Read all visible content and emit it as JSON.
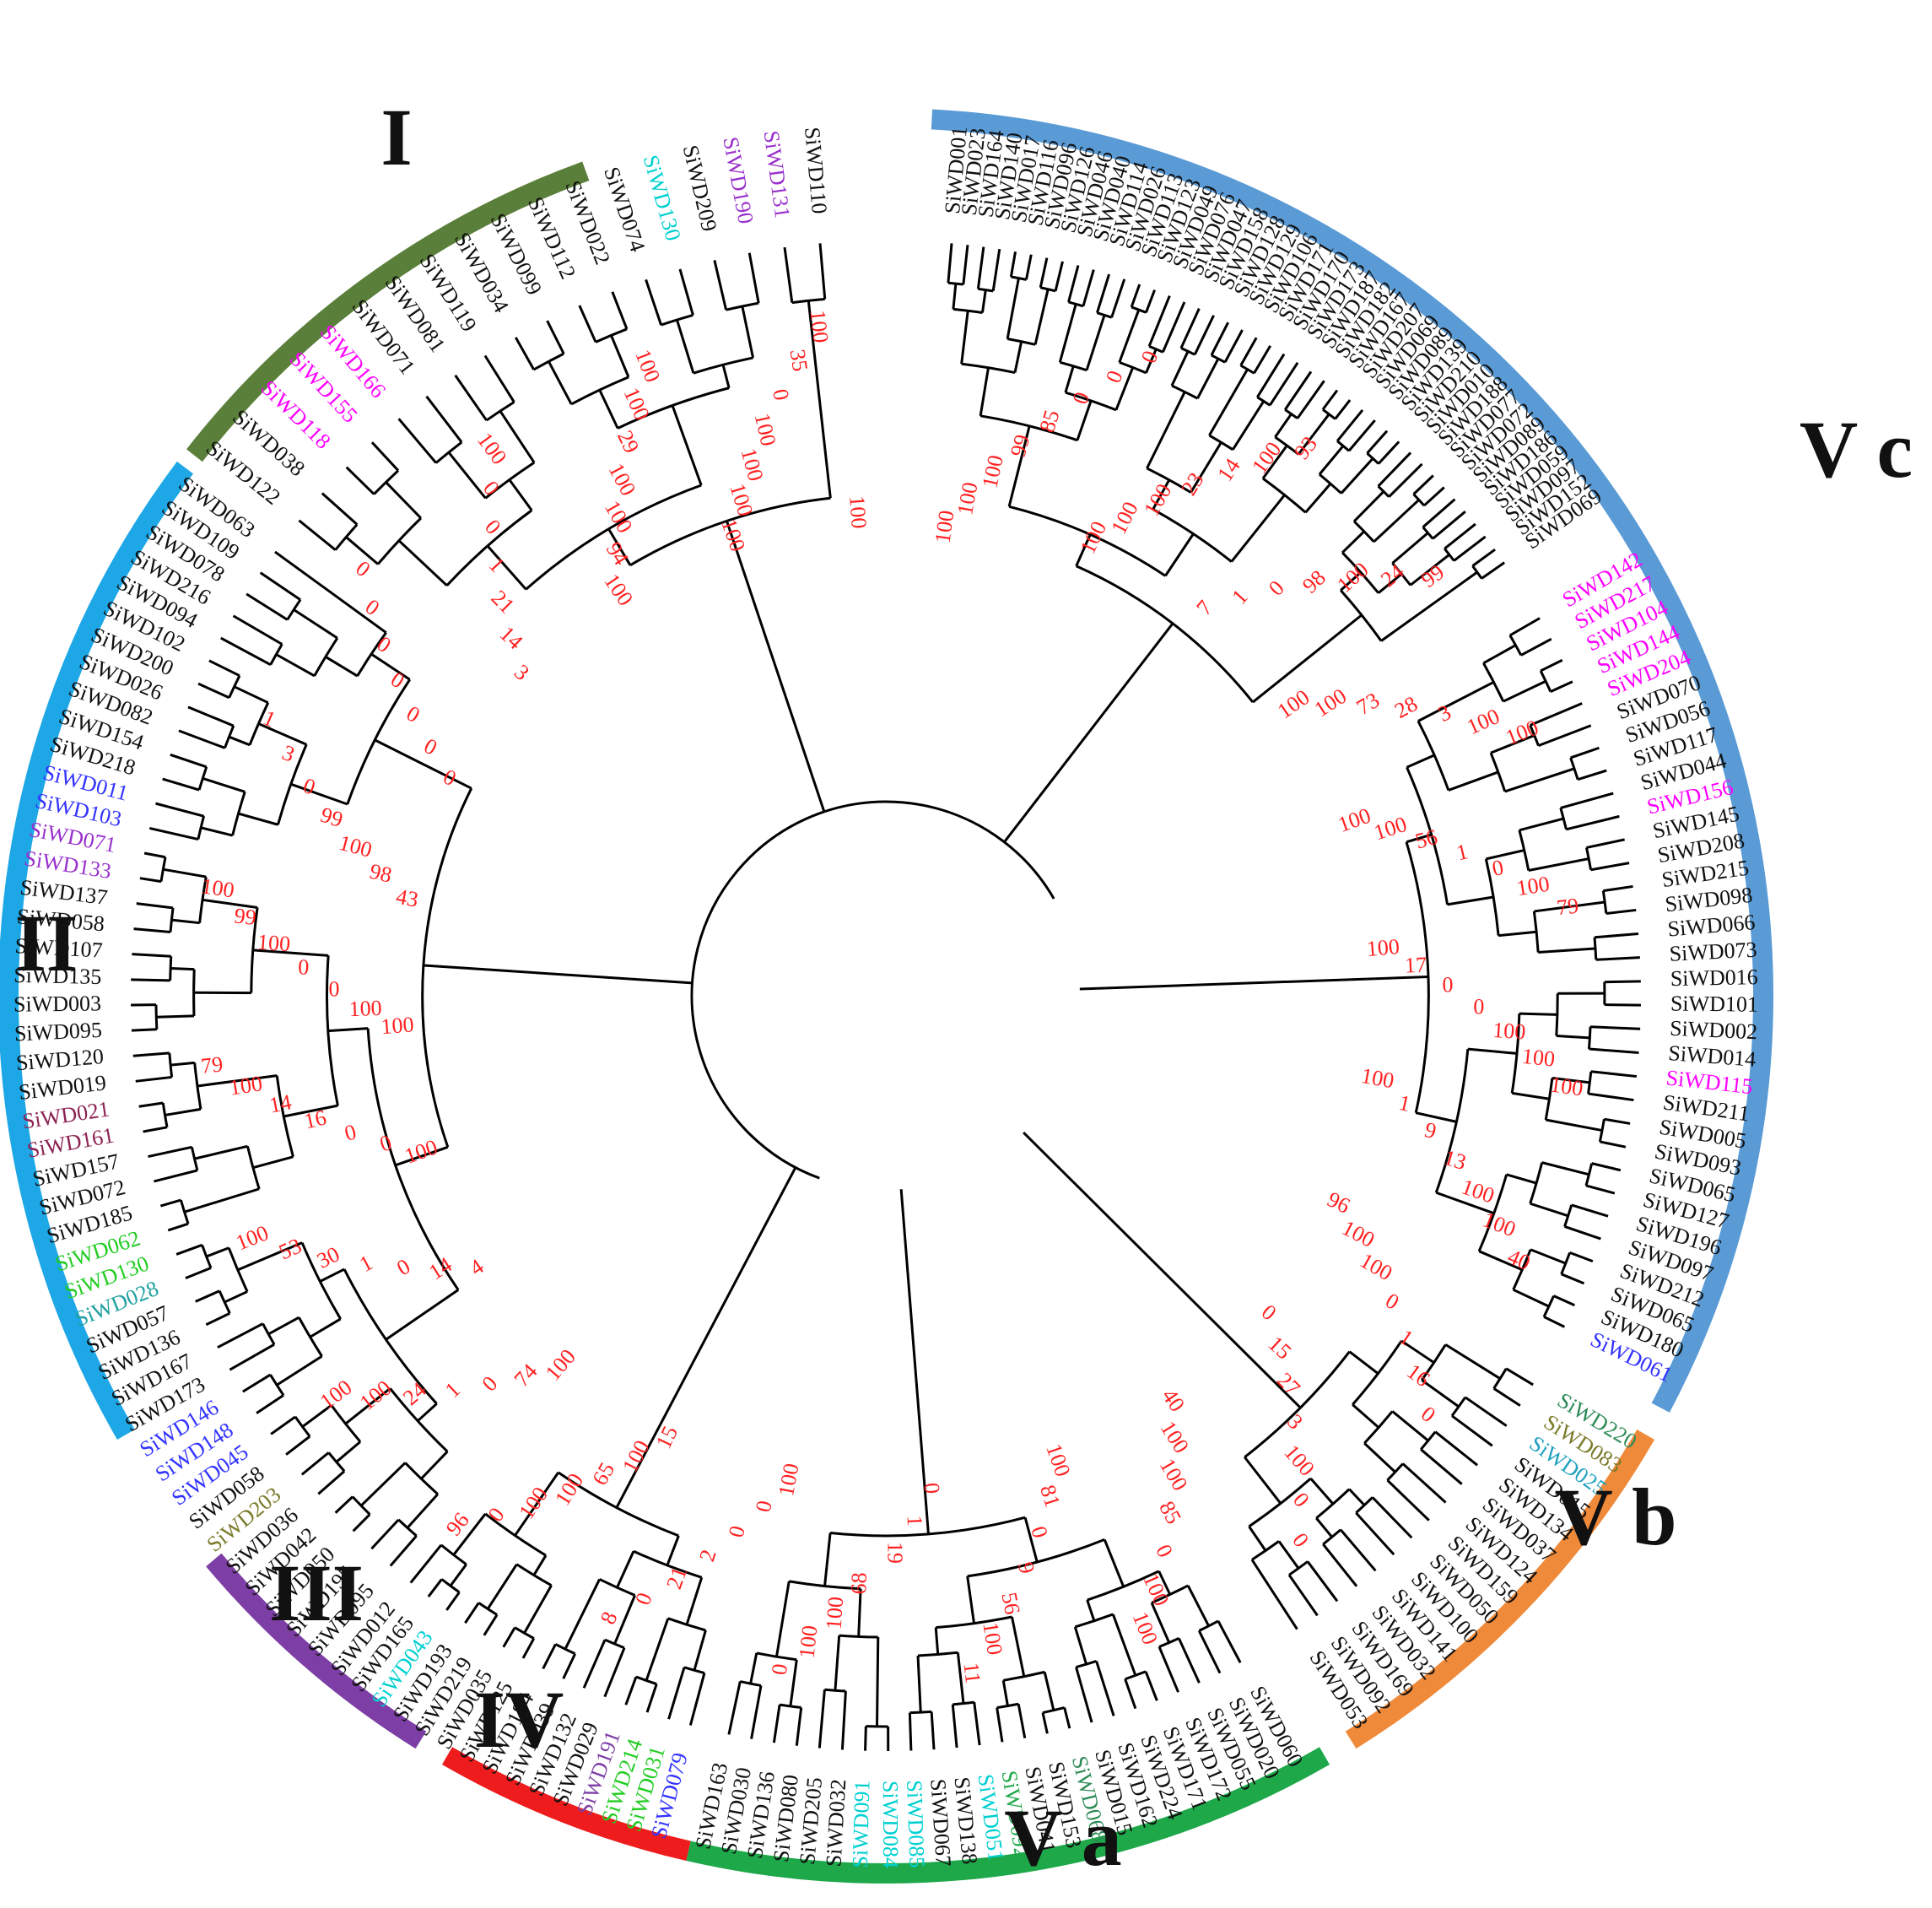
{
  "figure": {
    "clades": [
      {
        "label": "I",
        "color": "#5a7f3a"
      },
      {
        "label": "II",
        "color": "#1ea7e6"
      },
      {
        "label": "III",
        "color": "#7d3fa6"
      },
      {
        "label": "IV",
        "color": "#ee1c1c"
      },
      {
        "label": "V a",
        "color": "#1ea84a"
      },
      {
        "label": "V b",
        "color": "#ef8a3a"
      },
      {
        "label": "V c",
        "color": "#5a9bd6"
      }
    ],
    "leaf_labels_va": [
      "SiWD060",
      "SiWD020",
      "SiWD055",
      "SiWD172",
      "SiWD171",
      "SiWD224",
      "SiWD162",
      "SiWD015",
      "SiWD068",
      "SiWD153",
      "SiWD041",
      "SiWD092",
      "SiWD051",
      "SiWD138",
      "SiWD067",
      "SiWD085",
      "SiWD084",
      "SiWD091",
      "SiWD032",
      "SiWD205",
      "SiWD080",
      "SiWD136",
      "SiWD030",
      "SiWD163"
    ],
    "leaf_labels_vc_right": [
      "SiWD142",
      "SiWD217",
      "SiWD104",
      "SiWD144",
      "SiWD204",
      "SiWD070",
      "SiWD056",
      "SiWD117",
      "SiWD044",
      "SiWD156",
      "SiWD145",
      "SiWD208",
      "SiWD215",
      "SiWD098",
      "SiWD066",
      "SiWD073",
      "SiWD016",
      "SiWD101",
      "SiWD002",
      "SiWD014",
      "SiWD115",
      "SiWD211",
      "SiWD005",
      "SiWD093",
      "SiWD065",
      "SiWD127",
      "SiWD196",
      "SiWD097",
      "SiWD212",
      "SiWD065",
      "SiWD180",
      "SiWD061"
    ],
    "leaf_labels_vc_top": [
      "SiWD001",
      "SiWD023",
      "SiWD164",
      "SiWD140",
      "SiWD017",
      "SiWD116",
      "SiWD096",
      "SiWD126",
      "SiWD046",
      "SiWD040",
      "SiWD114",
      "SiWD026",
      "SiWD113",
      "SiWD123",
      "SiWD049",
      "SiWD076",
      "SiWD047",
      "SiWD158",
      "SiWD128",
      "SiWD129",
      "SiWD106",
      "SiWD171",
      "SiWD170",
      "SiWD173",
      "SiWD187",
      "SiWD182",
      "SiWD167",
      "SiWD207",
      "SiWD069",
      "SiWD089",
      "SiWD139",
      "SiWD210",
      "SiWD010",
      "SiWD188",
      "SiWD077",
      "SiWD072",
      "SiWD089",
      "SiWD186",
      "SiWD059",
      "SiWD097",
      "SiWD152",
      "SiWD069"
    ],
    "leaf_labels_i": [
      "SiWD122",
      "SiWD038",
      "SiWD118",
      "SiWD155",
      "SiWD166",
      "SiWD071",
      "SiWD081",
      "SiWD119",
      "SiWD034",
      "SiWD099",
      "SiWD112",
      "SiWD022",
      "SiWD074",
      "SiWD130",
      "SiWD209",
      "SiWD190",
      "SiWD131",
      "SiWD110"
    ],
    "leaf_labels_ii": [
      "SiWD095",
      "SiWD195",
      "SiWD050",
      "SiWD042",
      "SiWD036",
      "SiWD203",
      "SiWD058",
      "SiWD045",
      "SiWD148",
      "SiWD146",
      "SiWD173",
      "SiWD167",
      "SiWD136",
      "SiWD057",
      "SiWD028",
      "SiWD130",
      "SiWD062",
      "SiWD185",
      "SiWD072",
      "SiWD157",
      "SiWD161",
      "SiWD021",
      "SiWD019",
      "SiWD120",
      "SiWD095",
      "SiWD003",
      "SiWD135",
      "SiWD107",
      "SiWD058",
      "SiWD137",
      "SiWD133",
      "SiWD071",
      "SiWD103",
      "SiWD011",
      "SiWD218",
      "SiWD154",
      "SiWD082",
      "SiWD026",
      "SiWD200",
      "SiWD102",
      "SiWD094",
      "SiWD216",
      "SiWD078",
      "SiWD109",
      "SiWD063"
    ],
    "leaf_labels_iii_iv": [
      "SiWD079",
      "SiWD031",
      "SiWD214",
      "SiWD191",
      "SiWD029",
      "SiWD132",
      "SiWD039",
      "SiWD184",
      "SiWD125",
      "SiWD035",
      "SiWD219",
      "SiWD193",
      "SiWD043",
      "SiWD165",
      "SiWD012"
    ],
    "leaf_labels_vb": [
      "SiWD220",
      "SiWD083",
      "SiWD025",
      "SiWD015",
      "SiWD134",
      "SiWD037",
      "SiWD124",
      "SiWD159",
      "SiWD050",
      "SiWD100",
      "SiWD141",
      "SiWD032",
      "SiWD169",
      "SiWD092",
      "SiWD053"
    ],
    "bootstrap_values": [
      "100",
      "100",
      "100",
      "99",
      "85",
      "0",
      "0",
      "0",
      "100",
      "100",
      "100",
      "23",
      "14",
      "100",
      "93",
      "7",
      "1",
      "0",
      "98",
      "100",
      "24",
      "99",
      "100",
      "100",
      "73",
      "28",
      "3",
      "100",
      "100",
      "100",
      "100",
      "56",
      "1",
      "0",
      "100",
      "79",
      "100",
      "17",
      "0",
      "0",
      "100",
      "100",
      "100",
      "100",
      "1",
      "9",
      "13",
      "100",
      "100",
      "40",
      "96",
      "100",
      "100",
      "0",
      "1",
      "16",
      "0",
      "0",
      "15",
      "27",
      "3",
      "100",
      "0",
      "0",
      "40",
      "100",
      "100",
      "85",
      "0",
      "100",
      "100",
      "100",
      "81",
      "0",
      "9",
      "56",
      "100",
      "11",
      "0",
      "1",
      "19",
      "68",
      "100",
      "100",
      "0",
      "100",
      "0",
      "0",
      "2",
      "21",
      "0",
      "8",
      "15",
      "100",
      "65",
      "100",
      "100",
      "0",
      "96",
      "100",
      "74",
      "0",
      "1",
      "24",
      "100",
      "100",
      "4",
      "14",
      "0",
      "1",
      "30",
      "53",
      "100",
      "100",
      "0",
      "0",
      "16",
      "14",
      "100",
      "79",
      "100",
      "100",
      "0",
      "0",
      "100",
      "99",
      "100",
      "43",
      "98",
      "100",
      "99",
      "0",
      "3",
      "1",
      "0",
      "0",
      "0",
      "0",
      "0",
      "0",
      "0",
      "3",
      "14",
      "21",
      "1",
      "0",
      "0",
      "100",
      "100",
      "94",
      "100",
      "100",
      "29",
      "100",
      "100",
      "100",
      "100",
      "100",
      "100",
      "0",
      "35",
      "100",
      "100"
    ]
  }
}
